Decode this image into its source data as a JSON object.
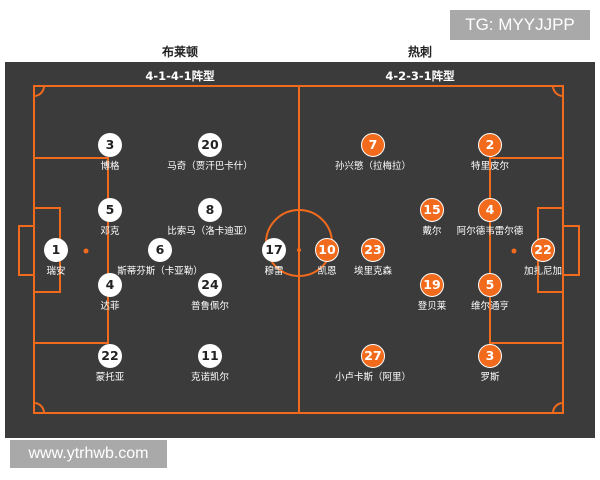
{
  "watermark_top": "TG: MYYJJPP",
  "watermark_bottom": "www.ytrhwb.com",
  "colors": {
    "home": "#ffffff",
    "away": "#f26b1d",
    "field": "#3b3b3b",
    "lines": "#f26b1d"
  },
  "home": {
    "team": "布莱顿",
    "formation": "4-1-4-1阵型",
    "players": [
      {
        "number": "1",
        "name": "瑞安",
        "pos": "GK"
      },
      {
        "number": "3",
        "name": "博格"
      },
      {
        "number": "5",
        "name": "邓克"
      },
      {
        "number": "4",
        "name": "达菲"
      },
      {
        "number": "22",
        "name": "蒙托亚"
      },
      {
        "number": "6",
        "name": "斯蒂芬斯（卡亚勒）"
      },
      {
        "number": "20",
        "name": "马奇（贾汗巴卡什）"
      },
      {
        "number": "8",
        "name": "比索马（洛卡迪亚）"
      },
      {
        "number": "24",
        "name": "普鲁佩尔"
      },
      {
        "number": "11",
        "name": "克诺凯尔"
      },
      {
        "number": "17",
        "name": "穆雷"
      }
    ]
  },
  "away": {
    "team": "热刺",
    "formation": "4-2-3-1阵型",
    "players": [
      {
        "number": "22",
        "name": "加扎尼加"
      },
      {
        "number": "2",
        "name": "特里皮尔"
      },
      {
        "number": "4",
        "name": "阿尔德韦雷尔德"
      },
      {
        "number": "5",
        "name": "维尔通亨"
      },
      {
        "number": "3",
        "name": "罗斯"
      },
      {
        "number": "15",
        "name": "戴尔"
      },
      {
        "number": "19",
        "name": "登贝莱"
      },
      {
        "number": "7",
        "name": "孙兴慜（拉梅拉）"
      },
      {
        "number": "23",
        "name": "埃里克森"
      },
      {
        "number": "27",
        "name": "小卢卡斯（阿里）"
      },
      {
        "number": "10",
        "name": "凯恩"
      }
    ]
  }
}
